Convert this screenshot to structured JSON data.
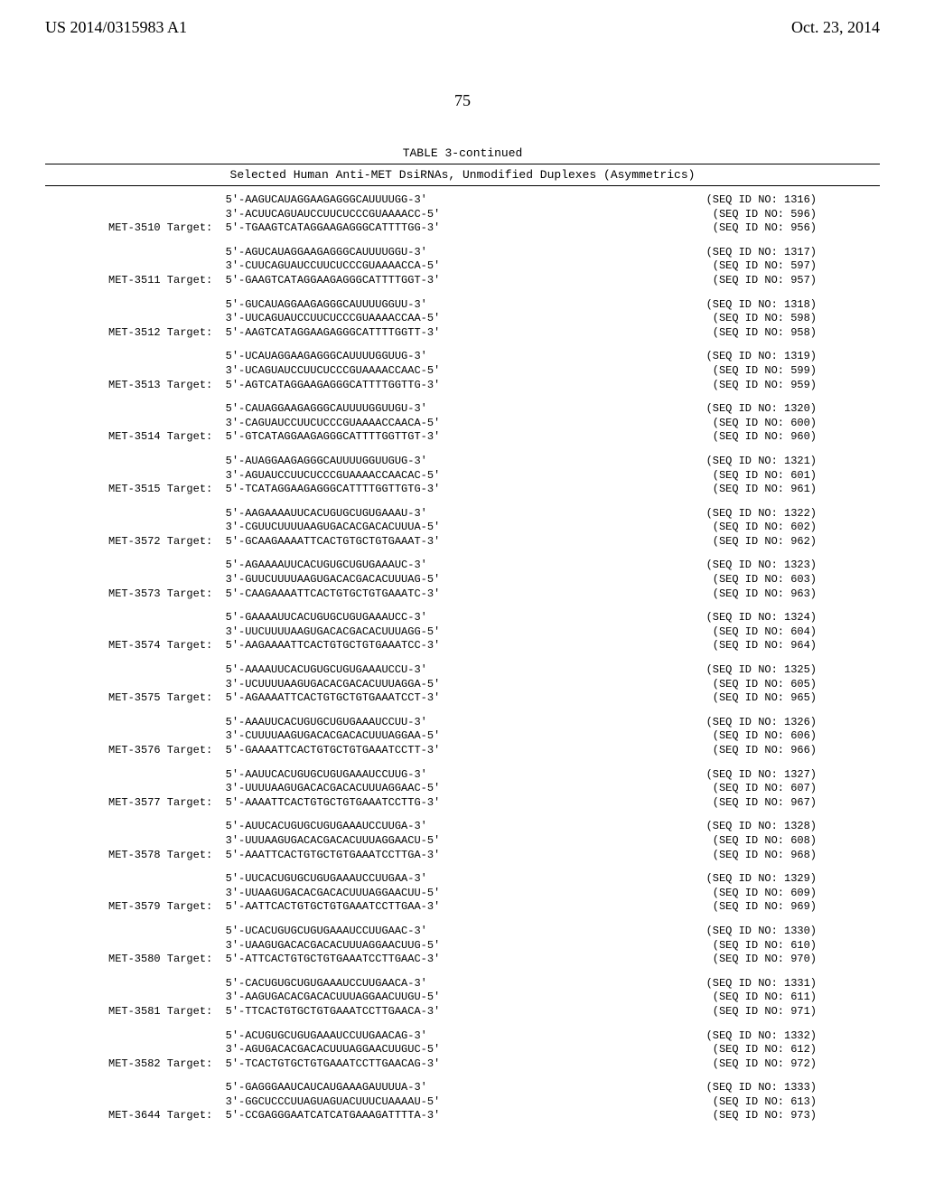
{
  "header": {
    "pubNumber": "US 2014/0315983 A1",
    "pubDate": "Oct. 23, 2014",
    "pageNum": "75"
  },
  "table": {
    "title": "TABLE 3-continued",
    "subtitle": "Selected Human Anti-MET DsiRNAs, Unmodified Duplexes (Asymmetrics)"
  },
  "blocks": [
    {
      "met": "MET-3510",
      "seq1": "5'-AAGUCAUAGGAAGAGGGCAUUUUGG-3'",
      "id1": "1316",
      "seq2": "3'-ACUUCAGUAUCCUUCUCCCGUAAAACC-5'",
      "id2": "596",
      "seq3": "5'-TGAAGTCATAGGAAGAGGGCATTTTGG-3'",
      "id3": "956"
    },
    {
      "met": "MET-3511",
      "seq1": "5'-AGUCAUAGGAAGAGGGCAUUUUGGU-3'",
      "id1": "1317",
      "seq2": "3'-CUUCAGUAUCCUUCUCCCGUAAAACCA-5'",
      "id2": "597",
      "seq3": "5'-GAAGTCATAGGAAGAGGGCATTTTGGT-3'",
      "id3": "957"
    },
    {
      "met": "MET-3512",
      "seq1": "5'-GUCAUAGGAAGAGGGCAUUUUGGUU-3'",
      "id1": "1318",
      "seq2": "3'-UUCAGUAUCCUUCUCCCGUAAAACCAA-5'",
      "id2": "598",
      "seq3": "5'-AAGTCATAGGAAGAGGGCATTTTGGTT-3'",
      "id3": "958"
    },
    {
      "met": "MET-3513",
      "seq1": "5'-UCAUAGGAAGAGGGCAUUUUGGUUG-3'",
      "id1": "1319",
      "seq2": "3'-UCAGUAUCCUUCUCCCGUAAAACCAAC-5'",
      "id2": "599",
      "seq3": "5'-AGTCATAGGAAGAGGGCATTTTGGTTG-3'",
      "id3": "959"
    },
    {
      "met": "MET-3514",
      "seq1": "5'-CAUAGGAAGAGGGCAUUUUGGUUGU-3'",
      "id1": "1320",
      "seq2": "3'-CAGUAUCCUUCUCCCGUAAAACCAACA-5'",
      "id2": "600",
      "seq3": "5'-GTCATAGGAAGAGGGCATTTTGGTTGT-3'",
      "id3": "960"
    },
    {
      "met": "MET-3515",
      "seq1": "5'-AUAGGAAGAGGGCAUUUUGGUUGUG-3'",
      "id1": "1321",
      "seq2": "3'-AGUAUCCUUCUCCCGUAAAACCAACAC-5'",
      "id2": "601",
      "seq3": "5'-TCATAGGAAGAGGGCATTTTGGTTGTG-3'",
      "id3": "961"
    },
    {
      "met": "MET-3572",
      "seq1": "5'-AAGAAAAUUCACUGUGCUGUGAAAU-3'",
      "id1": "1322",
      "seq2": "3'-CGUUCUUUUAAGUGACACGACACUUUA-5'",
      "id2": "602",
      "seq3": "5'-GCAAGAAAATTCACTGTGCTGTGAAAT-3'",
      "id3": "962"
    },
    {
      "met": "MET-3573",
      "seq1": "5'-AGAAAAUUCACUGUGCUGUGAAAUC-3'",
      "id1": "1323",
      "seq2": "3'-GUUCUUUUAAGUGACACGACACUUUAG-5'",
      "id2": "603",
      "seq3": "5'-CAAGAAAATTCACTGTGCTGTGAAATC-3'",
      "id3": "963"
    },
    {
      "met": "MET-3574",
      "seq1": "5'-GAAAAUUCACUGUGCUGUGAAAUCC-3'",
      "id1": "1324",
      "seq2": "3'-UUCUUUUAAGUGACACGACACUUUAGG-5'",
      "id2": "604",
      "seq3": "5'-AAGAAAATTCACTGTGCTGTGAAATCC-3'",
      "id3": "964"
    },
    {
      "met": "MET-3575",
      "seq1": "5'-AAAAUUCACUGUGCUGUGAAAUCCU-3'",
      "id1": "1325",
      "seq2": "3'-UCUUUUAAGUGACACGACACUUUAGGA-5'",
      "id2": "605",
      "seq3": "5'-AGAAAATTCACTGTGCTGTGAAATCCT-3'",
      "id3": "965"
    },
    {
      "met": "MET-3576",
      "seq1": "5'-AAAUUCACUGUGCUGUGAAAUCCUU-3'",
      "id1": "1326",
      "seq2": "3'-CUUUUAAGUGACACGACACUUUAGGAA-5'",
      "id2": "606",
      "seq3": "5'-GAAAATTCACTGTGCTGTGAAATCCTT-3'",
      "id3": "966"
    },
    {
      "met": "MET-3577",
      "seq1": "5'-AAUUCACUGUGCUGUGAAAUCCUUG-3'",
      "id1": "1327",
      "seq2": "3'-UUUUAAGUGACACGACACUUUAGGAAC-5'",
      "id2": "607",
      "seq3": "5'-AAAATTCACTGTGCTGTGAAATCCTTG-3'",
      "id3": "967"
    },
    {
      "met": "MET-3578",
      "seq1": "5'-AUUCACUGUGCUGUGAAAUCCUUGA-3'",
      "id1": "1328",
      "seq2": "3'-UUUAAGUGACACGACACUUUAGGAACU-5'",
      "id2": "608",
      "seq3": "5'-AAATTCACTGTGCTGTGAAATCCTTGA-3'",
      "id3": "968"
    },
    {
      "met": "MET-3579",
      "seq1": "5'-UUCACUGUGCUGUGAAAUCCUUGAA-3'",
      "id1": "1329",
      "seq2": "3'-UUAAGUGACACGACACUUUAGGAACUU-5'",
      "id2": "609",
      "seq3": "5'-AATTCACTGTGCTGTGAAATCCTTGAA-3'",
      "id3": "969"
    },
    {
      "met": "MET-3580",
      "seq1": "5'-UCACUGUGCUGUGAAAUCCUUGAAC-3'",
      "id1": "1330",
      "seq2": "3'-UAAGUGACACGACACUUUAGGAACUUG-5'",
      "id2": "610",
      "seq3": "5'-ATTCACTGTGCTGTGAAATCCTTGAAC-3'",
      "id3": "970"
    },
    {
      "met": "MET-3581",
      "seq1": "5'-CACUGUGCUGUGAAAUCCUUGAACA-3'",
      "id1": "1331",
      "seq2": "3'-AAGUGACACGACACUUUAGGAACUUGU-5'",
      "id2": "611",
      "seq3": "5'-TTCACTGTGCTGTGAAATCCTTGAACA-3'",
      "id3": "971"
    },
    {
      "met": "MET-3582",
      "seq1": "5'-ACUGUGCUGUGAAAUCCUUGAACAG-3'",
      "id1": "1332",
      "seq2": "3'-AGUGACACGACACUUUAGGAACUUGUC-5'",
      "id2": "612",
      "seq3": "5'-TCACTGTGCTGTGAAATCCTTGAACAG-3'",
      "id3": "972"
    },
    {
      "met": "MET-3644",
      "seq1": "5'-GAGGGAAUCAUCAUGAAAGAUUUUA-3'",
      "id1": "1333",
      "seq2": "3'-GGCUCCCUUAGUAGUACUUUCUAAAAU-5'",
      "id2": "613",
      "seq3": "5'-CCGAGGGAATCATCATGAAAGATTTTA-3'",
      "id3": "973"
    }
  ]
}
